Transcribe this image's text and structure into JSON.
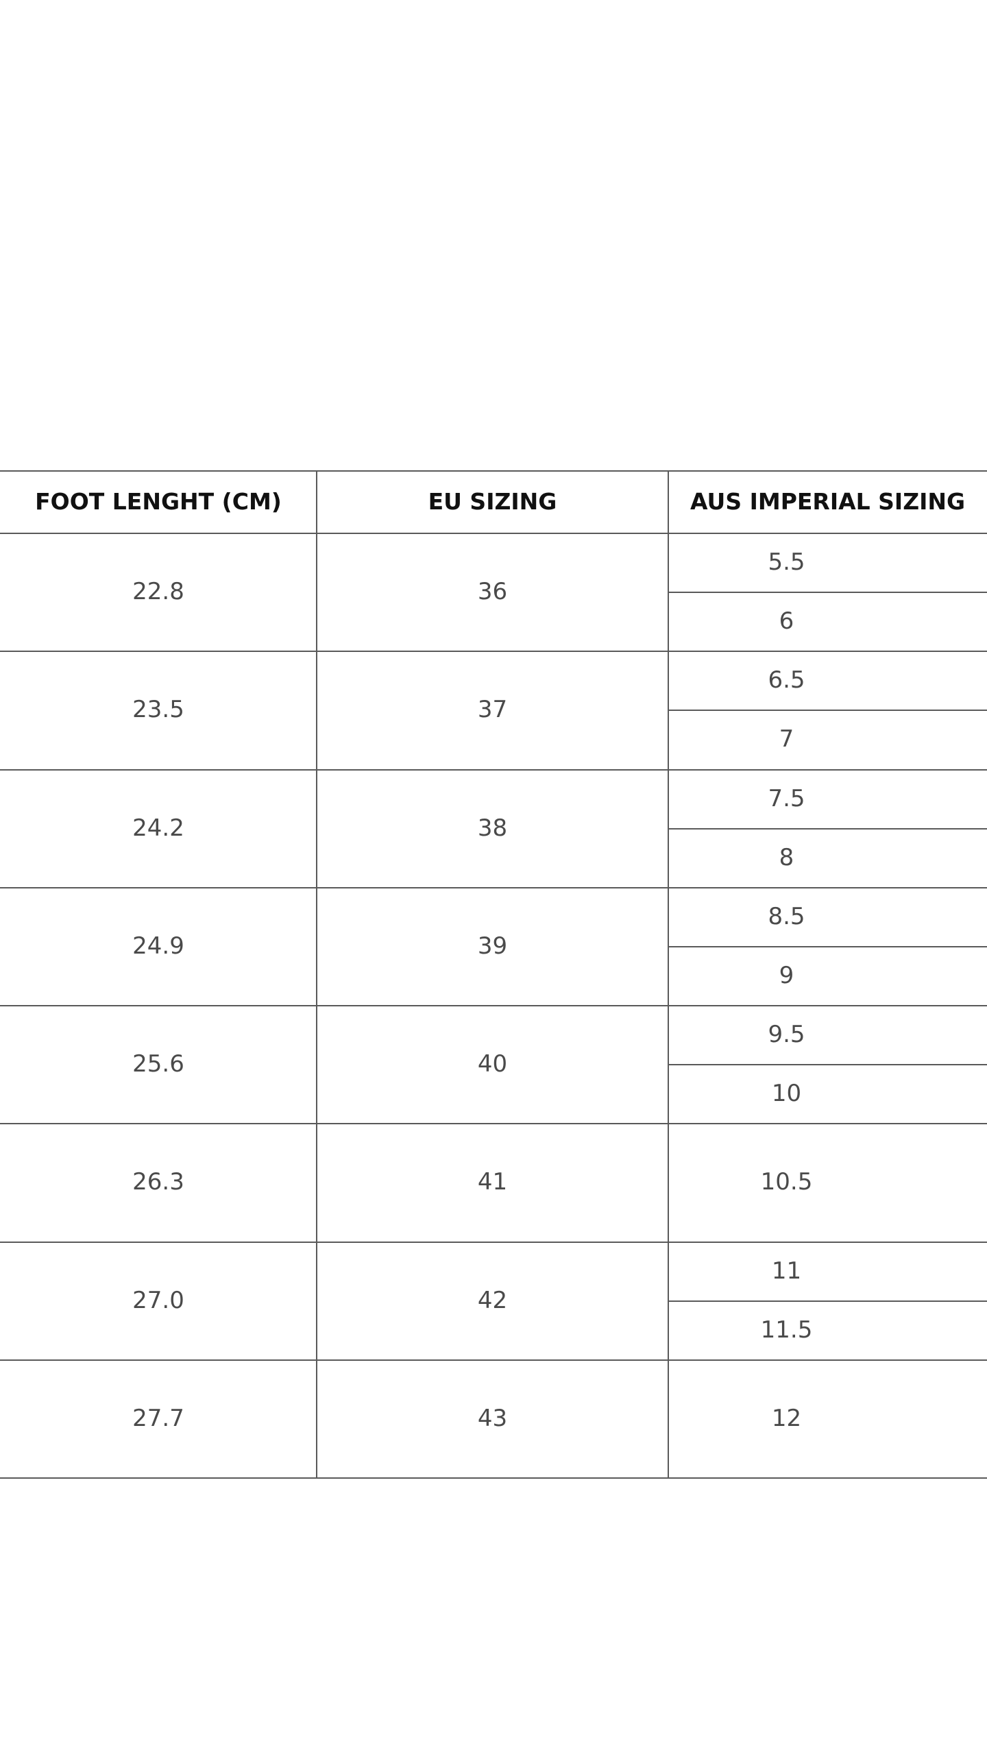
{
  "table": {
    "headers": [
      "FOOT LENGHT (CM)",
      "EU SIZING",
      "AUS IMPERIAL SIZING"
    ],
    "rows": [
      {
        "foot": "22.8",
        "eu": "36",
        "aus": [
          "5.5",
          "6"
        ]
      },
      {
        "foot": "23.5",
        "eu": "37",
        "aus": [
          "6.5",
          "7"
        ]
      },
      {
        "foot": "24.2",
        "eu": "38",
        "aus": [
          "7.5",
          "8"
        ]
      },
      {
        "foot": "24.9",
        "eu": "39",
        "aus": [
          "8.5",
          "9"
        ]
      },
      {
        "foot": "25.6",
        "eu": "40",
        "aus": [
          "9.5",
          "10"
        ]
      },
      {
        "foot": "26.3",
        "eu": "41",
        "aus": [
          "10.5"
        ]
      },
      {
        "foot": "27.0",
        "eu": "42",
        "aus": [
          "11",
          "11.5"
        ]
      },
      {
        "foot": "27.7",
        "eu": "43",
        "aus": [
          "12"
        ]
      }
    ]
  }
}
